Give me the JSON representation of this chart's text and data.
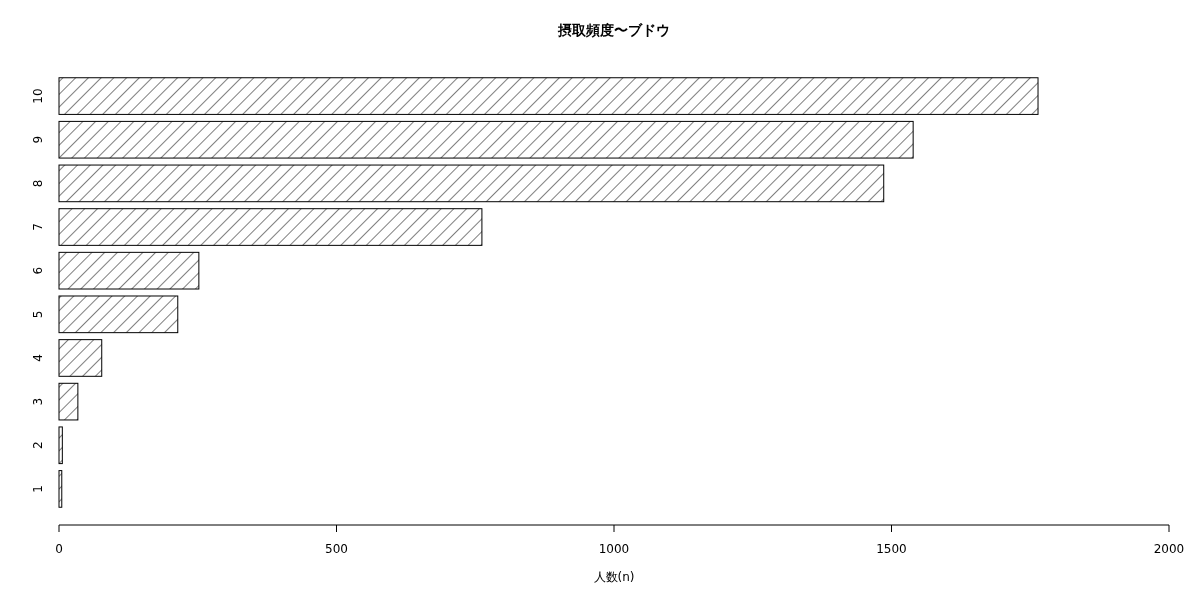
{
  "chart_data": {
    "type": "bar",
    "orientation": "horizontal",
    "title": "摂取頻度〜ブドウ",
    "xlabel": "人数(n)",
    "categories": [
      "10",
      "9",
      "8",
      "7",
      "6",
      "5",
      "4",
      "3",
      "2",
      "1"
    ],
    "values": [
      1764,
      1539,
      1486,
      762,
      252,
      214,
      77,
      34,
      6,
      5
    ],
    "color": "#000000",
    "xlim": [
      0,
      2000
    ],
    "xticks": [
      0,
      500,
      1000,
      1500,
      2000
    ]
  }
}
